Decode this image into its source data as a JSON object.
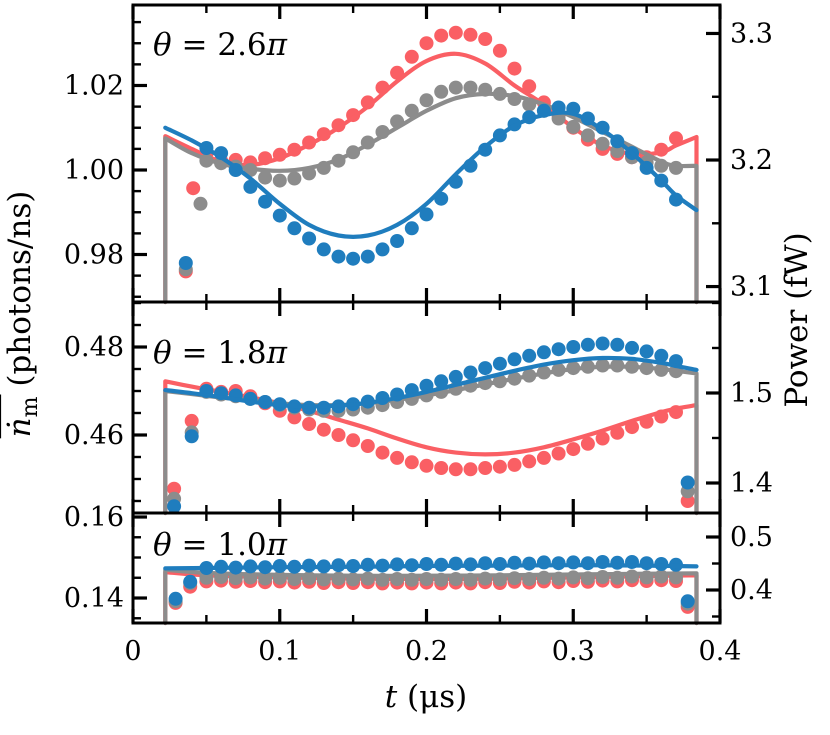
{
  "figure": {
    "xlabel": {
      "variable": "t",
      "unit": "(μs)"
    },
    "ylabel_left": {
      "base": "ṅ",
      "overline": true,
      "subscript": "m",
      "unit": "(photons/ns)"
    },
    "ylabel_right": "Power (fW)"
  },
  "chart_data": {
    "type": "line-scatter-multipanel",
    "x_axis": {
      "label": "t (μs)",
      "lim": [
        0,
        0.4
      ],
      "major_ticks": [
        0,
        0.1,
        0.2,
        0.3,
        0.4
      ],
      "tick_labels": [
        "0",
        "0.1",
        "0.2",
        "0.3",
        "0.4"
      ],
      "minor_step": 0.05
    },
    "colors": {
      "red": "#fa5f64",
      "gray": "#8c8c8c",
      "blue": "#1f7dbe",
      "axis": "#000000"
    },
    "pulse_window": {
      "t_on": 0.022,
      "t_off": 0.384
    },
    "panels": [
      {
        "label": {
          "theta": "θ",
          "equals": " = ",
          "value": "2.6",
          "pi": "π",
          "text": "θ = 2.6π"
        },
        "axis_left": {
          "lim": [
            0.96876,
            1.03905
          ],
          "major_ticks": [
            0.98,
            1.0,
            1.02
          ],
          "tick_labels": [
            "0.98",
            "1.00",
            "1.02"
          ],
          "minor_step": 0.005
        },
        "axis_right": {
          "lim": [
            3.0878,
            3.3225
          ],
          "major_ticks": [
            3.1,
            3.2,
            3.3
          ],
          "tick_labels": [
            "3.1",
            "3.2",
            "3.3"
          ],
          "minor_step": 0.05
        },
        "line_t": [
          0.022,
          0.04,
          0.06,
          0.08,
          0.1,
          0.12,
          0.14,
          0.16,
          0.18,
          0.2,
          0.22,
          0.24,
          0.26,
          0.28,
          0.3,
          0.32,
          0.34,
          0.36,
          0.37,
          0.384
        ],
        "dots_t": [
          0.036,
          0.041,
          0.046,
          0.05,
          0.06,
          0.07,
          0.08,
          0.09,
          0.1,
          0.11,
          0.12,
          0.13,
          0.14,
          0.15,
          0.16,
          0.17,
          0.18,
          0.19,
          0.2,
          0.21,
          0.22,
          0.23,
          0.24,
          0.25,
          0.26,
          0.27,
          0.28,
          0.29,
          0.3,
          0.31,
          0.32,
          0.33,
          0.34,
          0.35,
          0.36,
          0.37
        ],
        "series": [
          {
            "name": "red",
            "color_key": "red",
            "edge_drop": true,
            "line_v": [
              1.008,
              1.005,
              1.002,
              1.0012,
              1.0028,
              1.006,
              1.01,
              1.015,
              1.021,
              1.0258,
              1.0275,
              1.0252,
              1.02,
              1.0155,
              1.01,
              1.0058,
              1.0038,
              1.0042,
              1.0058,
              1.0078
            ],
            "dots_v": [
              0.976,
              0.9957,
              null,
              1.0038,
              1.0022,
              1.0024,
              1.0018,
              1.0028,
              1.0036,
              1.0048,
              1.0065,
              1.0085,
              1.0106,
              1.013,
              1.016,
              1.0195,
              1.023,
              1.0268,
              1.03,
              1.0318,
              1.0325,
              1.032,
              1.031,
              1.0282,
              1.024,
              1.0198,
              1.016,
              1.013,
              1.01,
              1.0072,
              1.005,
              1.0038,
              1.003,
              1.003,
              1.0048,
              1.0075
            ]
          },
          {
            "name": "gray",
            "color_key": "gray",
            "edge_drop": true,
            "line_v": [
              1.0075,
              1.004,
              1.0015,
              1.0003,
              0.9998,
              1.0005,
              1.0025,
              1.006,
              1.01,
              1.014,
              1.017,
              1.018,
              1.0175,
              1.0155,
              1.0125,
              1.009,
              1.0055,
              1.002,
              1.001,
              1.001
            ],
            "dots_v": [
              0.9765,
              null,
              0.992,
              1.0022,
              1.0016,
              1.0008,
              1.0,
              0.9982,
              0.9975,
              0.998,
              0.9992,
              1.0005,
              1.0022,
              1.0042,
              1.0065,
              1.009,
              1.0115,
              1.014,
              1.0165,
              1.0185,
              1.0195,
              1.0195,
              1.019,
              1.018,
              1.0168,
              1.0155,
              1.014,
              1.0122,
              1.0102,
              1.0082,
              1.0062,
              1.0045,
              1.003,
              1.0018,
              1.001,
              1.0005
            ]
          },
          {
            "name": "blue",
            "color_key": "blue",
            "edge_drop": false,
            "line_v": [
              1.01,
              1.007,
              1.003,
              0.998,
              0.992,
              0.987,
              0.9845,
              0.9845,
              0.987,
              0.992,
              0.999,
              1.0055,
              1.0105,
              1.013,
              1.0133,
              1.0095,
              1.004,
              0.9975,
              0.994,
              0.9905
            ],
            "dots_v": [
              0.978,
              null,
              null,
              1.0052,
              1.004,
              1.0,
              0.996,
              0.9925,
              0.9892,
              0.9862,
              0.9838,
              0.9812,
              0.9795,
              0.979,
              0.9795,
              0.9812,
              0.9832,
              0.9862,
              0.9895,
              0.9932,
              0.9972,
              1.001,
              1.0048,
              1.0082,
              1.0108,
              1.0125,
              1.014,
              1.0148,
              1.0145,
              1.0122,
              1.01,
              1.0068,
              1.004,
              1.0005,
              0.9975,
              0.993
            ]
          }
        ]
      },
      {
        "label": {
          "theta": "θ",
          "equals": " = ",
          "value": "1.8",
          "pi": "π",
          "text": "θ = 1.8π"
        },
        "axis_left": {
          "lim": [
            0.44227,
            0.49023
          ],
          "major_ticks": [
            0.46,
            0.48
          ],
          "tick_labels": [
            "0.46",
            "0.48"
          ],
          "minor_step": 0.005
        },
        "axis_right": {
          "lim": [
            1.36667,
            1.6011
          ],
          "major_ticks": [
            1.4,
            1.5
          ],
          "tick_labels": [
            "1.4",
            "1.5"
          ],
          "minor_step": 0.05
        },
        "line_t": [
          0.022,
          0.04,
          0.06,
          0.08,
          0.1,
          0.12,
          0.14,
          0.16,
          0.18,
          0.2,
          0.22,
          0.24,
          0.26,
          0.28,
          0.3,
          0.32,
          0.34,
          0.36,
          0.37,
          0.384
        ],
        "dots_t": [
          0.028,
          0.04,
          0.05,
          0.06,
          0.07,
          0.08,
          0.09,
          0.1,
          0.11,
          0.12,
          0.13,
          0.14,
          0.15,
          0.16,
          0.17,
          0.18,
          0.19,
          0.2,
          0.21,
          0.22,
          0.23,
          0.24,
          0.25,
          0.26,
          0.27,
          0.28,
          0.29,
          0.3,
          0.31,
          0.32,
          0.33,
          0.34,
          0.35,
          0.36,
          0.37,
          0.378
        ],
        "series": [
          {
            "name": "red",
            "color_key": "red",
            "edge_drop": true,
            "line_v": [
              0.4722,
              0.471,
              0.4698,
              0.4686,
              0.4672,
              0.4655,
              0.4635,
              0.4615,
              0.4592,
              0.4572,
              0.456,
              0.4556,
              0.456,
              0.4572,
              0.459,
              0.461,
              0.4632,
              0.4652,
              0.466,
              0.4668
            ],
            "dots_v": [
              0.4478,
              0.4632,
              0.4705,
              0.4698,
              0.47,
              0.4688,
              0.4672,
              0.4655,
              0.464,
              0.4625,
              0.4612,
              0.46,
              0.4588,
              0.4575,
              0.456,
              0.4548,
              0.4538,
              0.453,
              0.4525,
              0.4522,
              0.4522,
              0.4525,
              0.4528,
              0.4532,
              0.454,
              0.4548,
              0.4558,
              0.4568,
              0.458,
              0.4592,
              0.4605,
              0.4618,
              0.463,
              0.4642,
              0.4652,
              0.445
            ]
          },
          {
            "name": "gray",
            "color_key": "gray",
            "edge_drop": true,
            "line_v": [
              0.47,
              0.4693,
              0.4685,
              0.4678,
              0.4672,
              0.4668,
              0.4668,
              0.4672,
              0.468,
              0.469,
              0.4702,
              0.4715,
              0.4728,
              0.474,
              0.475,
              0.4755,
              0.4755,
              0.475,
              0.4746,
              0.474
            ],
            "dots_v": [
              0.4455,
              0.4606,
              0.4698,
              0.4692,
              0.4688,
              0.4682,
              0.4675,
              0.4668,
              0.4662,
              0.4658,
              0.4655,
              0.4655,
              0.4658,
              0.4662,
              0.4668,
              0.4675,
              0.4682,
              0.469,
              0.4698,
              0.4705,
              0.4712,
              0.4718,
              0.4722,
              0.4728,
              0.4735,
              0.4742,
              0.4748,
              0.4752,
              0.4755,
              0.4758,
              0.4758,
              0.4755,
              0.4752,
              0.4748,
              0.4745,
              0.4472
            ]
          },
          {
            "name": "blue",
            "color_key": "blue",
            "edge_drop": false,
            "line_v": [
              0.4702,
              0.4695,
              0.4686,
              0.4676,
              0.4668,
              0.4665,
              0.4667,
              0.4673,
              0.4684,
              0.4698,
              0.4714,
              0.473,
              0.4746,
              0.476,
              0.477,
              0.4775,
              0.4773,
              0.4764,
              0.4757,
              0.4748
            ],
            "dots_v": [
              0.4438,
              0.4597,
              0.47,
              0.4695,
              0.469,
              0.4682,
              0.4675,
              0.467,
              0.4665,
              0.4662,
              0.4662,
              0.4665,
              0.467,
              0.4676,
              0.4684,
              0.4692,
              0.4702,
              0.4712,
              0.4722,
              0.4732,
              0.4742,
              0.4752,
              0.4762,
              0.4772,
              0.478,
              0.4788,
              0.4795,
              0.48,
              0.4805,
              0.4808,
              0.4805,
              0.4798,
              0.479,
              0.478,
              0.4768,
              0.4492
            ]
          }
        ]
      },
      {
        "label": {
          "theta": "θ",
          "equals": " = ",
          "value": "1.0",
          "pi": "π",
          "text": "θ = 1.0π"
        },
        "axis_left": {
          "lim": [
            0.13383,
            0.16099
          ],
          "major_ticks": [
            0.14,
            0.16
          ],
          "tick_labels": [
            "0.14",
            "0.16"
          ],
          "minor_step": 0.005
        },
        "axis_right": {
          "lim": [
            0.33774,
            0.54528
          ],
          "major_ticks": [
            0.4,
            0.5
          ],
          "tick_labels": [
            "0.4",
            "0.5"
          ],
          "minor_step": 0.05
        },
        "line_t": [
          0.022,
          0.05,
          0.1,
          0.15,
          0.2,
          0.25,
          0.3,
          0.35,
          0.384
        ],
        "dots_t": [
          0.029,
          0.039,
          0.05,
          0.06,
          0.07,
          0.08,
          0.09,
          0.1,
          0.11,
          0.12,
          0.13,
          0.14,
          0.15,
          0.16,
          0.17,
          0.18,
          0.19,
          0.2,
          0.21,
          0.22,
          0.23,
          0.24,
          0.25,
          0.26,
          0.27,
          0.28,
          0.29,
          0.3,
          0.31,
          0.32,
          0.33,
          0.34,
          0.35,
          0.36,
          0.37,
          0.378
        ],
        "series": [
          {
            "name": "red",
            "color_key": "red",
            "edge_drop": true,
            "line_v": [
              0.1464,
              0.1456,
              0.1451,
              0.1448,
              0.1447,
              0.1448,
              0.1451,
              0.1454,
              0.1456
            ],
            "dots_v": [
              0.1388,
              0.1428,
              0.1441,
              0.1443,
              0.144,
              0.1442,
              0.1439,
              0.1441,
              0.1438,
              0.144,
              0.1437,
              0.1439,
              0.1437,
              0.1439,
              0.1436,
              0.1438,
              0.1436,
              0.1438,
              0.1436,
              0.1438,
              0.1436,
              0.1439,
              0.1437,
              0.144,
              0.1438,
              0.1441,
              0.1439,
              0.1442,
              0.144,
              0.1443,
              0.1441,
              0.1444,
              0.1442,
              0.1444,
              0.1442,
              0.1378
            ]
          },
          {
            "name": "gray",
            "color_key": "gray",
            "edge_drop": true,
            "line_v": [
              0.147,
              0.1462,
              0.1457,
              0.1455,
              0.1455,
              0.1456,
              0.1458,
              0.146,
              0.1461
            ],
            "dots_v": [
              0.1392,
              0.1437,
              0.145,
              0.1452,
              0.1449,
              0.1451,
              0.1448,
              0.145,
              0.1447,
              0.1449,
              0.1446,
              0.1448,
              0.1446,
              0.1448,
              0.1445,
              0.1447,
              0.1445,
              0.1447,
              0.1445,
              0.1447,
              0.1445,
              0.1448,
              0.1446,
              0.1449,
              0.1447,
              0.145,
              0.1448,
              0.1451,
              0.1449,
              0.1452,
              0.145,
              0.1453,
              0.1451,
              0.1453,
              0.1451,
              0.1386
            ]
          },
          {
            "name": "blue",
            "color_key": "blue",
            "edge_drop": false,
            "line_v": [
              0.1473,
              0.1474,
              0.1476,
              0.1477,
              0.1479,
              0.148,
              0.1481,
              0.148,
              0.1478
            ],
            "dots_v": [
              0.1398,
              0.144,
              0.1474,
              0.1477,
              0.1475,
              0.1478,
              0.1476,
              0.1479,
              0.1477,
              0.148,
              0.1478,
              0.1481,
              0.1479,
              0.1482,
              0.148,
              0.1483,
              0.1481,
              0.1484,
              0.1482,
              0.1485,
              0.1483,
              0.1486,
              0.1484,
              0.1487,
              0.1485,
              0.1488,
              0.1486,
              0.1488,
              0.1486,
              0.1489,
              0.1487,
              0.1489,
              0.1486,
              0.1484,
              0.1482,
              0.1392
            ]
          }
        ]
      }
    ]
  }
}
